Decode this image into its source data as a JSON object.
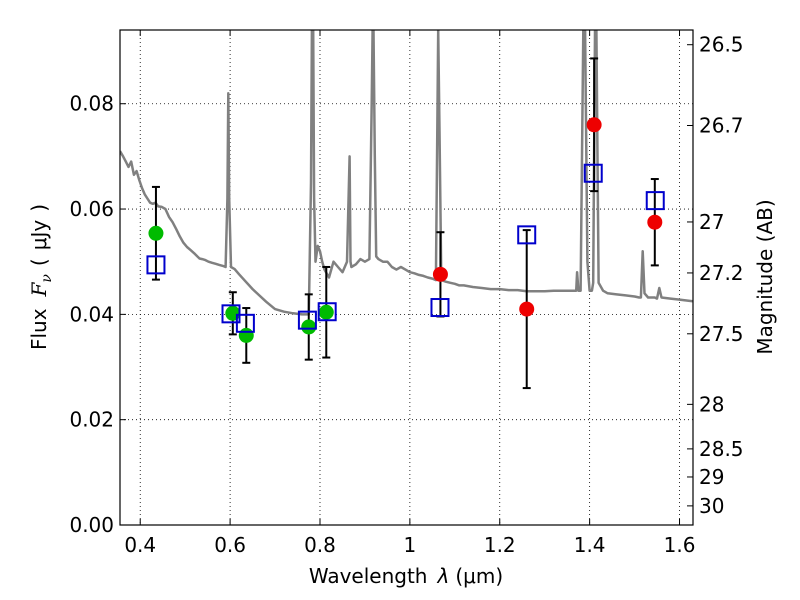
{
  "chart_data": {
    "type": "scatter",
    "xlabel": "Wavelength  λ (μm)",
    "ylabel": "Flux  Fν  ( μJy )",
    "ylabel_parts": {
      "prefix": "Flux",
      "symbol": "F",
      "subscript": "ν",
      "open": "(",
      "unit": "μJy",
      "close": ")"
    },
    "xlabel_parts": {
      "prefix": "Wavelength",
      "symbol": "λ",
      "unit": "(μm)"
    },
    "right_ylabel": "Magnitude (AB)",
    "xlim": [
      0.355,
      1.63
    ],
    "ylim": [
      0.0,
      0.094
    ],
    "grid": true,
    "x_ticks": [
      0.4,
      0.6,
      0.8,
      1.0,
      1.2,
      1.4,
      1.6
    ],
    "x_tick_labels": [
      "0.4",
      "0.6",
      "0.8",
      "1",
      "1.2",
      "1.4",
      "1.6"
    ],
    "y_ticks": [
      0.0,
      0.02,
      0.04,
      0.06,
      0.08
    ],
    "y_tick_labels": [
      "0.00",
      "0.02",
      "0.04",
      "0.06",
      "0.08"
    ],
    "right_ticks": [
      {
        "label": "26.5",
        "mag": 26.5
      },
      {
        "label": "26.7",
        "mag": 26.7
      },
      {
        "label": "27",
        "mag": 27.0
      },
      {
        "label": "27.2",
        "mag": 27.2
      },
      {
        "label": "27.5",
        "mag": 27.5
      },
      {
        "label": "28",
        "mag": 28.0
      },
      {
        "label": "28.5",
        "mag": 28.5
      },
      {
        "label": "29",
        "mag": 29.0
      },
      {
        "label": "30",
        "mag": 30.0
      }
    ],
    "series": [
      {
        "name": "observed-optical",
        "marker": "circle",
        "color": "#00bb00",
        "points": [
          {
            "x": 0.435,
            "y": 0.0554,
            "err": 0.0088
          },
          {
            "x": 0.606,
            "y": 0.0402,
            "err": 0.004
          },
          {
            "x": 0.636,
            "y": 0.036,
            "err": 0.0052
          },
          {
            "x": 0.775,
            "y": 0.0376,
            "err": 0.0062
          },
          {
            "x": 0.814,
            "y": 0.0404,
            "err": 0.0086
          }
        ]
      },
      {
        "name": "observed-nir",
        "marker": "circle",
        "color": "#ee0000",
        "points": [
          {
            "x": 1.068,
            "y": 0.0476,
            "err": 0.008
          },
          {
            "x": 1.26,
            "y": 0.041,
            "err": 0.015
          },
          {
            "x": 1.41,
            "y": 0.076,
            "err": 0.0126
          },
          {
            "x": 1.545,
            "y": 0.0575,
            "err": 0.0082
          }
        ]
      },
      {
        "name": "model-photometry",
        "marker": "square",
        "color": "#0000cc",
        "points": [
          {
            "x": 0.435,
            "y": 0.0494
          },
          {
            "x": 0.602,
            "y": 0.0401
          },
          {
            "x": 0.634,
            "y": 0.0383
          },
          {
            "x": 0.772,
            "y": 0.0389
          },
          {
            "x": 0.816,
            "y": 0.0405
          },
          {
            "x": 1.067,
            "y": 0.0413
          },
          {
            "x": 1.26,
            "y": 0.0551
          },
          {
            "x": 1.408,
            "y": 0.0668
          },
          {
            "x": 1.546,
            "y": 0.0616
          }
        ]
      }
    ],
    "model_spectrum": {
      "name": "template-sed",
      "color": "#808080",
      "x": [
        0.355,
        0.362,
        0.368,
        0.374,
        0.38,
        0.386,
        0.392,
        0.398,
        0.404,
        0.41,
        0.416,
        0.422,
        0.428,
        0.434,
        0.44,
        0.448,
        0.456,
        0.464,
        0.472,
        0.48,
        0.488,
        0.496,
        0.504,
        0.512,
        0.52,
        0.527,
        0.532,
        0.538,
        0.545,
        0.552,
        0.56,
        0.568,
        0.576,
        0.584,
        0.59,
        0.594,
        0.596,
        0.598,
        0.602,
        0.61,
        0.62,
        0.635,
        0.65,
        0.665,
        0.68,
        0.7,
        0.72,
        0.74,
        0.76,
        0.775,
        0.78,
        0.782,
        0.785,
        0.787,
        0.79,
        0.795,
        0.8,
        0.805,
        0.81,
        0.82,
        0.83,
        0.84,
        0.85,
        0.86,
        0.866,
        0.868,
        0.87,
        0.88,
        0.89,
        0.9,
        0.91,
        0.915,
        0.917,
        0.919,
        0.922,
        0.925,
        0.93,
        0.94,
        0.95,
        0.96,
        0.97,
        0.98,
        0.99,
        1.0,
        1.01,
        1.02,
        1.03,
        1.04,
        1.05,
        1.058,
        1.061,
        1.063,
        1.066,
        1.07,
        1.08,
        1.09,
        1.1,
        1.11,
        1.12,
        1.14,
        1.16,
        1.18,
        1.2,
        1.22,
        1.24,
        1.26,
        1.28,
        1.3,
        1.32,
        1.34,
        1.36,
        1.37,
        1.372,
        1.375,
        1.38,
        1.383,
        1.386,
        1.39,
        1.395,
        1.4,
        1.405,
        1.408,
        1.412,
        1.415,
        1.42,
        1.43,
        1.44,
        1.46,
        1.48,
        1.5,
        1.51,
        1.514,
        1.518,
        1.522,
        1.53,
        1.545,
        1.55,
        1.555,
        1.56,
        1.58,
        1.6,
        1.62,
        1.63
      ],
      "y": [
        0.071,
        0.07,
        0.069,
        0.068,
        0.069,
        0.0665,
        0.0672,
        0.0655,
        0.064,
        0.0628,
        0.062,
        0.0612,
        0.061,
        0.0612,
        0.0605,
        0.0604,
        0.06,
        0.0585,
        0.0575,
        0.0562,
        0.0548,
        0.0536,
        0.0528,
        0.0522,
        0.0516,
        0.051,
        0.0506,
        0.0505,
        0.0503,
        0.05,
        0.0498,
        0.0496,
        0.0494,
        0.0492,
        0.049,
        0.062,
        0.082,
        0.062,
        0.049,
        0.0486,
        0.0476,
        0.0462,
        0.0448,
        0.0436,
        0.0424,
        0.041,
        0.0405,
        0.0402,
        0.04,
        0.04,
        0.065,
        0.094,
        0.094,
        0.062,
        0.05,
        0.053,
        0.052,
        0.05,
        0.0485,
        0.047,
        0.05,
        0.049,
        0.048,
        0.05,
        0.07,
        0.05,
        0.049,
        0.0495,
        0.0505,
        0.05,
        0.0505,
        0.08,
        0.094,
        0.094,
        0.07,
        0.051,
        0.0505,
        0.05,
        0.05,
        0.049,
        0.0485,
        0.049,
        0.0485,
        0.048,
        0.0478,
        0.0475,
        0.0473,
        0.047,
        0.0468,
        0.0465,
        0.075,
        0.094,
        0.075,
        0.0465,
        0.0462,
        0.046,
        0.0458,
        0.0455,
        0.0455,
        0.0452,
        0.045,
        0.0448,
        0.0448,
        0.0446,
        0.0446,
        0.0444,
        0.0444,
        0.0444,
        0.0445,
        0.0445,
        0.0445,
        0.0445,
        0.048,
        0.0445,
        0.0445,
        0.07,
        0.094,
        0.094,
        0.05,
        0.0445,
        0.0445,
        0.046,
        0.094,
        0.094,
        0.046,
        0.0445,
        0.044,
        0.0438,
        0.0436,
        0.0434,
        0.0432,
        0.0432,
        0.052,
        0.044,
        0.0432,
        0.0432,
        0.043,
        0.045,
        0.0432,
        0.043,
        0.0428,
        0.0426,
        0.0425
      ]
    }
  }
}
